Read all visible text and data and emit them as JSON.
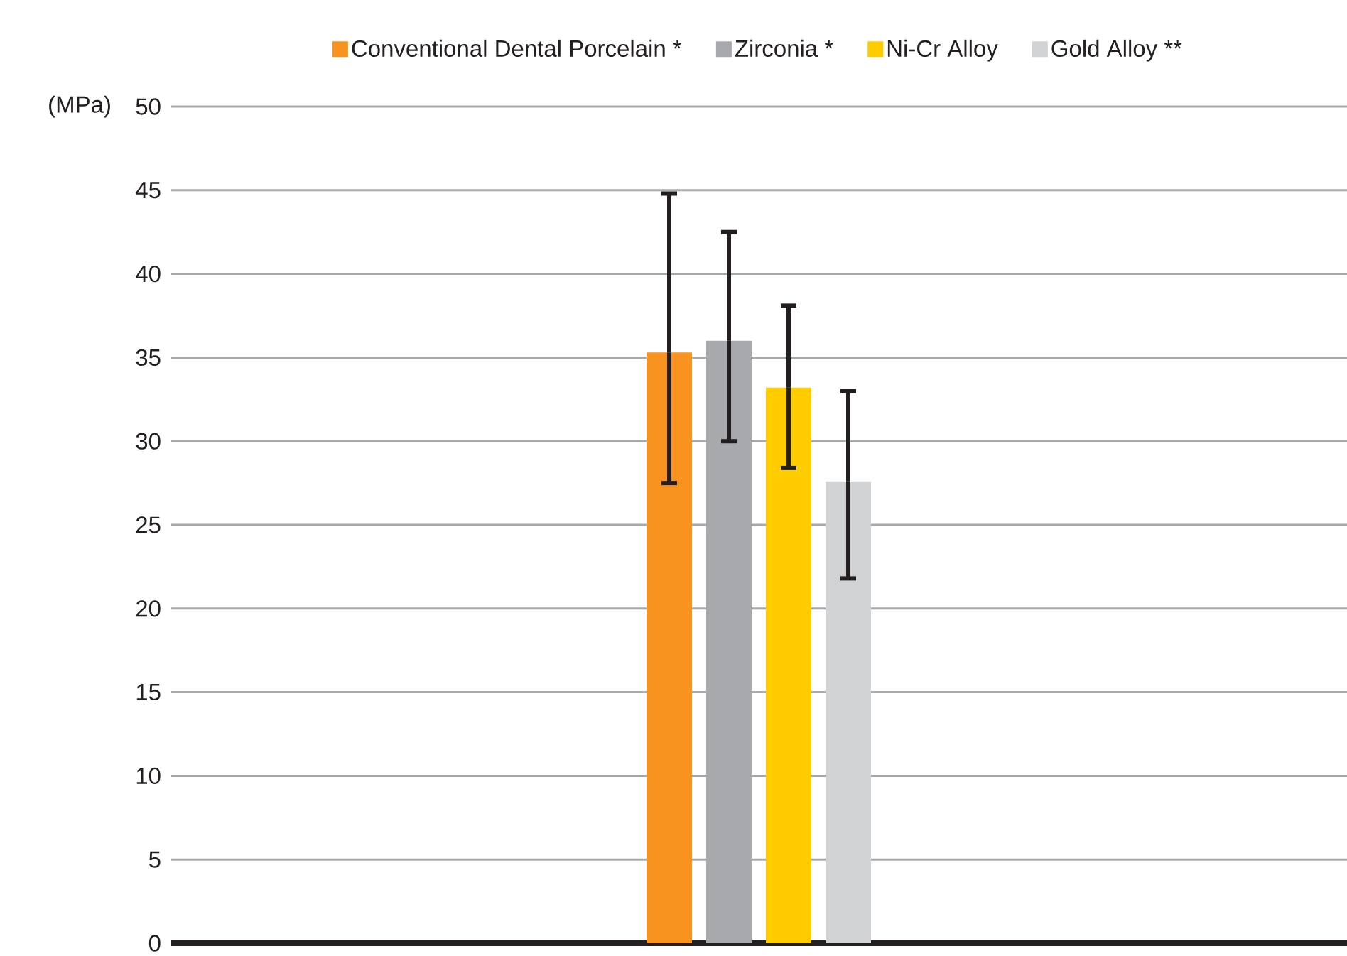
{
  "chart_data": {
    "type": "bar",
    "ylabel": "(MPa)",
    "categories": [
      null
    ],
    "series": [
      {
        "name": "Conventional Dental Porcelain *",
        "color": "#f7931e",
        "values": [
          35.3
        ],
        "errors": [
          [
            27.5,
            44.8
          ]
        ]
      },
      {
        "name": "Zirconia *",
        "color": "#a7a9ac",
        "values": [
          36.0
        ],
        "errors": [
          [
            30.0,
            42.5
          ]
        ]
      },
      {
        "name": "Ni-Cr Alloy",
        "color": "#ffcc00",
        "values": [
          33.2
        ],
        "errors": [
          [
            28.4,
            38.1
          ]
        ]
      },
      {
        "name": "Gold Alloy **",
        "color": "#d1d3d4",
        "values": [
          27.6
        ],
        "errors": [
          [
            21.8,
            33.0
          ]
        ]
      }
    ],
    "ylim": [
      0,
      50
    ],
    "yticks": [
      0,
      5,
      10,
      15,
      20,
      25,
      30,
      35,
      40,
      45,
      50
    ],
    "grid": "y",
    "legend": "top"
  }
}
